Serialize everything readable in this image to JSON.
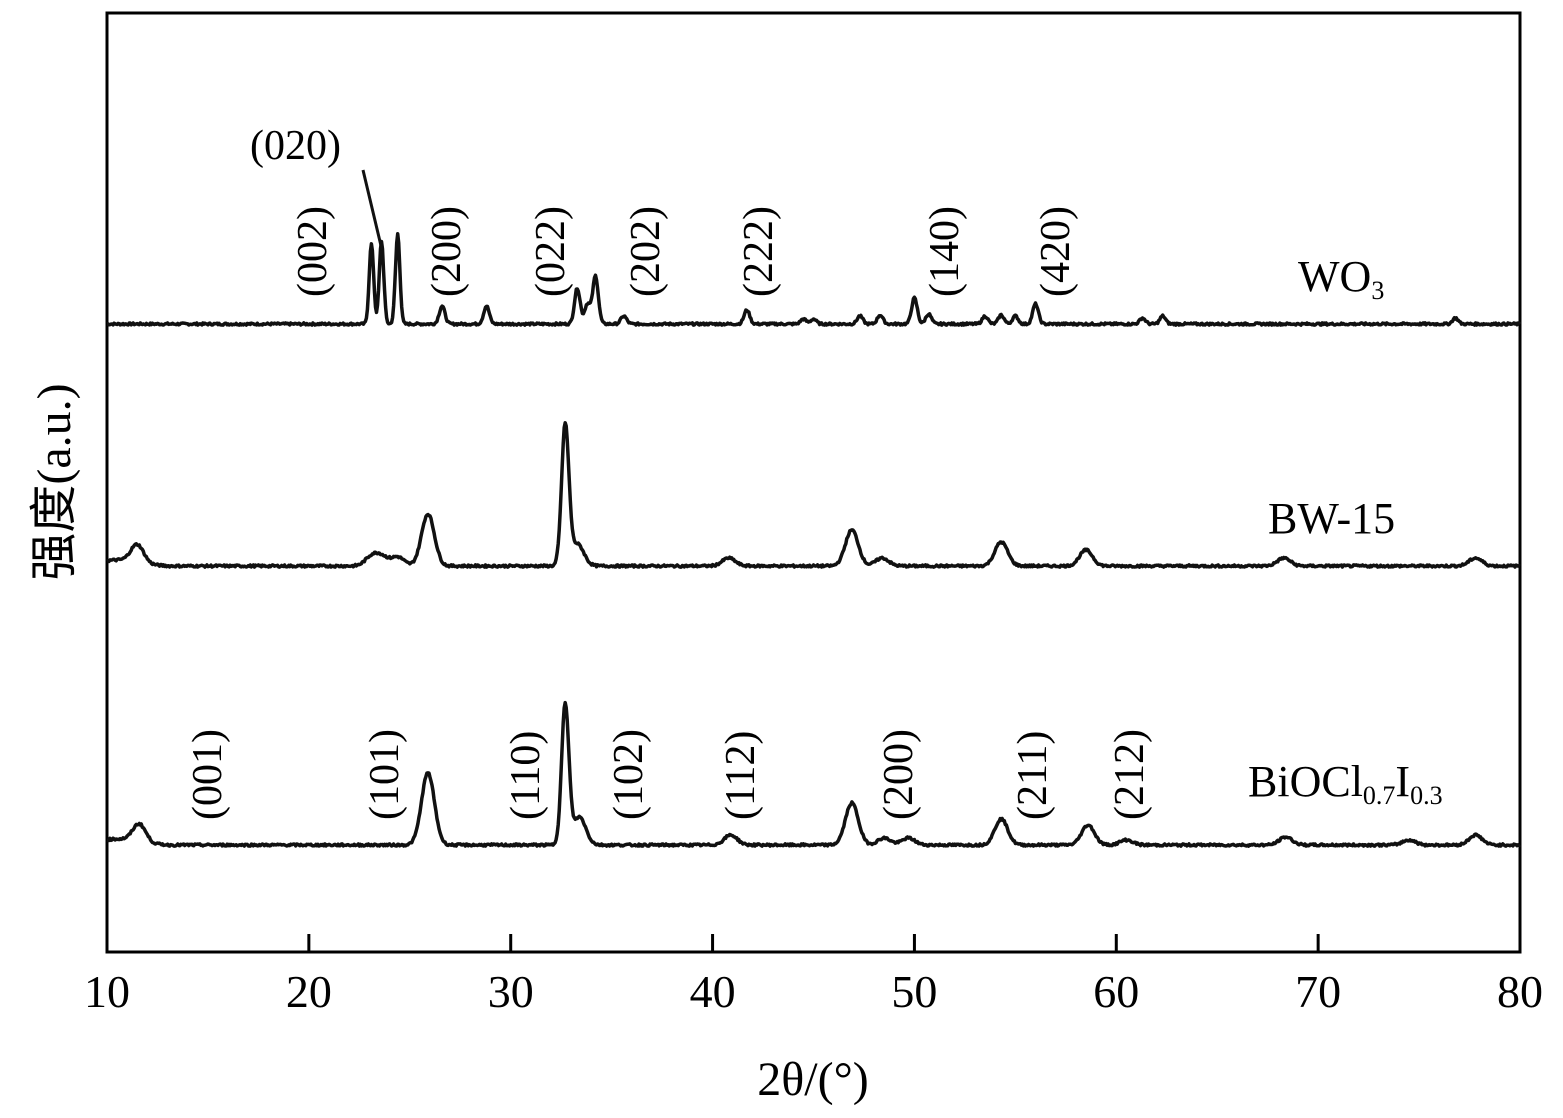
{
  "chart_data": {
    "type": "line",
    "xlabel": "2θ/(°)",
    "ylabel": "强度(a.u.)",
    "xlim": [
      10,
      80
    ],
    "x_ticks": [
      "10",
      "20",
      "30",
      "40",
      "50",
      "60",
      "70",
      "80"
    ],
    "grid": false,
    "series": [
      {
        "name": "WO3",
        "label_main": "WO",
        "label_sub": "3",
        "baseline": 0,
        "peaks": [
          {
            "x": 23.1,
            "height": 80
          },
          {
            "x": 23.6,
            "height": 83
          },
          {
            "x": 24.4,
            "height": 90
          },
          {
            "x": 26.6,
            "height": 18
          },
          {
            "x": 28.8,
            "height": 18
          },
          {
            "x": 33.3,
            "height": 36
          },
          {
            "x": 33.8,
            "height": 20
          },
          {
            "x": 34.2,
            "height": 48
          },
          {
            "x": 35.6,
            "height": 8
          },
          {
            "x": 41.7,
            "height": 14
          },
          {
            "x": 44.5,
            "height": 5
          },
          {
            "x": 45.0,
            "height": 5
          },
          {
            "x": 47.3,
            "height": 8
          },
          {
            "x": 48.3,
            "height": 9
          },
          {
            "x": 50.0,
            "height": 26
          },
          {
            "x": 50.7,
            "height": 10
          },
          {
            "x": 53.5,
            "height": 8
          },
          {
            "x": 54.3,
            "height": 9
          },
          {
            "x": 55.0,
            "height": 8
          },
          {
            "x": 56.0,
            "height": 20
          },
          {
            "x": 61.3,
            "height": 6
          },
          {
            "x": 62.3,
            "height": 8
          },
          {
            "x": 76.8,
            "height": 6
          }
        ],
        "annotations": [
          "(002)",
          "(020)",
          "(200)",
          "(022)",
          "(202)",
          "(222)",
          "(140)",
          "(420)"
        ]
      },
      {
        "name": "BW-15",
        "label_main": "BW-15",
        "label_sub": "",
        "baseline": 0,
        "peaks": [
          {
            "x": 11.5,
            "height": 18
          },
          {
            "x": 23.1,
            "height": 9
          },
          {
            "x": 23.6,
            "height": 9
          },
          {
            "x": 24.4,
            "height": 9
          },
          {
            "x": 25.9,
            "height": 52
          },
          {
            "x": 32.7,
            "height": 140
          },
          {
            "x": 33.3,
            "height": 22
          },
          {
            "x": 40.8,
            "height": 8
          },
          {
            "x": 46.9,
            "height": 36
          },
          {
            "x": 48.4,
            "height": 8
          },
          {
            "x": 54.3,
            "height": 24
          },
          {
            "x": 58.5,
            "height": 16
          },
          {
            "x": 68.3,
            "height": 8
          },
          {
            "x": 77.8,
            "height": 8
          }
        ],
        "annotations": []
      },
      {
        "name": "BiOCl0.7I0.3",
        "label_main": "BiOCl",
        "label_sub1": "0.7",
        "label_mid": "I",
        "label_sub2": "0.3",
        "baseline": 0,
        "peaks": [
          {
            "x": 11.6,
            "height": 18
          },
          {
            "x": 25.9,
            "height": 72
          },
          {
            "x": 32.7,
            "height": 140
          },
          {
            "x": 33.4,
            "height": 28
          },
          {
            "x": 40.9,
            "height": 10
          },
          {
            "x": 46.9,
            "height": 42
          },
          {
            "x": 48.5,
            "height": 7
          },
          {
            "x": 49.7,
            "height": 7
          },
          {
            "x": 54.3,
            "height": 26
          },
          {
            "x": 58.6,
            "height": 20
          },
          {
            "x": 60.5,
            "height": 5
          },
          {
            "x": 68.4,
            "height": 8
          },
          {
            "x": 74.5,
            "height": 5
          },
          {
            "x": 77.8,
            "height": 10
          }
        ],
        "annotations": [
          "(001)",
          "(101)",
          "(110)",
          "(102)",
          "(112)",
          "(200)",
          "(211)",
          "(212)"
        ]
      }
    ]
  }
}
